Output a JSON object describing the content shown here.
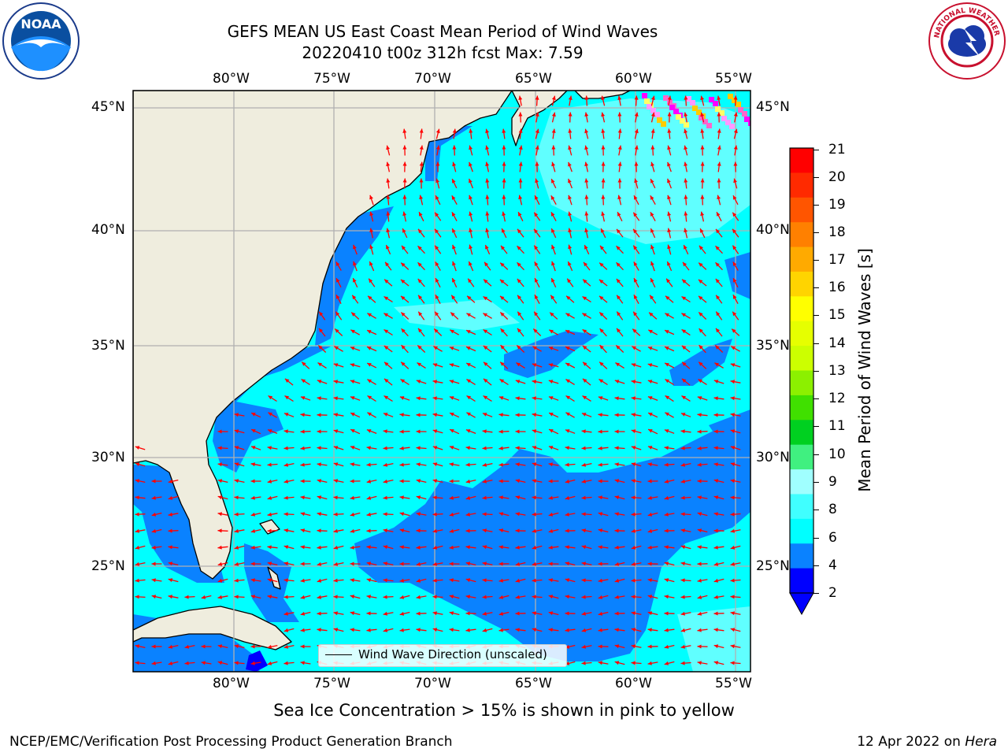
{
  "header": {
    "title_line1": "GEFS MEAN US East Coast Mean Period of Wind Waves",
    "title_line2": "20220410 t00z 312h fcst   Max: 7.59"
  },
  "logos": {
    "left": {
      "label": "NOAA",
      "icon": "noaa-logo-icon"
    },
    "right": {
      "label": "NATIONAL WEATHER SERVICE",
      "icon": "nws-logo-icon"
    }
  },
  "map": {
    "lon_labels": [
      "80°W",
      "75°W",
      "70°W",
      "65°W",
      "60°W",
      "55°W"
    ],
    "lat_labels": [
      "45°N",
      "40°N",
      "35°N",
      "30°N",
      "25°N"
    ],
    "legend_label": "Wind Wave Direction (unscaled)",
    "colors": {
      "land": "#efedde",
      "ocean_4_6": "#00ffff",
      "ocean_2_4": "#0a82ff",
      "ocean_6_8": "#80ffff",
      "arrow": "#ff0000",
      "grid": "#b0b0b0"
    }
  },
  "colorbar": {
    "label": "Mean Period of Wind Waves [s]",
    "ticks": [
      "21",
      "20",
      "19",
      "18",
      "17",
      "16",
      "15",
      "14",
      "13",
      "12",
      "11",
      "10",
      "9",
      "8",
      "6",
      "4",
      "2"
    ],
    "colors": [
      "#ff0000",
      "#ff2a00",
      "#ff5500",
      "#ff8000",
      "#ffaa00",
      "#ffd400",
      "#ffff00",
      "#e6ff00",
      "#ccff00",
      "#8cf000",
      "#40e000",
      "#00d020",
      "#40f080",
      "#a0ffff",
      "#40ffff",
      "#00ffff",
      "#0a82ff",
      "#0000ff"
    ]
  },
  "footer": {
    "ice_note": "Sea Ice Concentration > 15% is shown in pink to yellow",
    "credit": "NCEP/EMC/Verification Post Processing Product Generation Branch",
    "date": "12 Apr 2022 on",
    "host": "Hera"
  }
}
